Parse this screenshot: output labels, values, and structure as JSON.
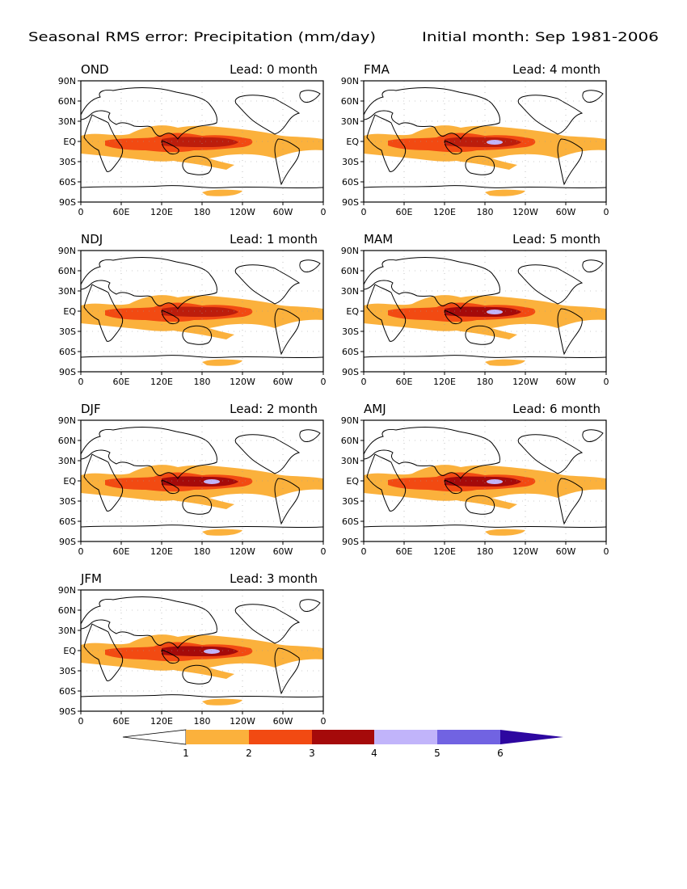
{
  "title_left": "Seasonal RMS error: Precipitation (mm/day)",
  "title_right": "Initial month: Sep 1981-2006",
  "lat_labels": [
    "90N",
    "60N",
    "30N",
    "EQ",
    "30S",
    "60S",
    "90S"
  ],
  "lon_labels": [
    "0",
    "60E",
    "120E",
    "180",
    "120W",
    "60W",
    "0"
  ],
  "panels": [
    {
      "season": "OND",
      "lead": "Lead: 0 month"
    },
    {
      "season": "FMA",
      "lead": "Lead: 4 month"
    },
    {
      "season": "NDJ",
      "lead": "Lead: 1 month"
    },
    {
      "season": "MAM",
      "lead": "Lead: 5 month"
    },
    {
      "season": "DJF",
      "lead": "Lead: 2 month"
    },
    {
      "season": "AMJ",
      "lead": "Lead: 6 month"
    },
    {
      "season": "JFM",
      "lead": "Lead: 3 month"
    }
  ],
  "colorbar": {
    "labels": [
      "1",
      "2",
      "3",
      "4",
      "5",
      "6"
    ],
    "colors": [
      "#ffffff",
      "#fbb13c",
      "#f24a12",
      "#a50a0a",
      "#c1b4fa",
      "#7163e2",
      "#2d07a0"
    ]
  }
}
